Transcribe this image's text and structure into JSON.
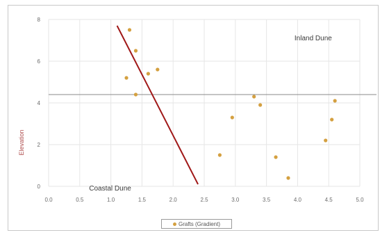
{
  "chart_data": {
    "type": "scatter",
    "title": "",
    "xlabel": "",
    "ylabel": "Elevation",
    "xlim": [
      0,
      5
    ],
    "ylim": [
      0,
      8
    ],
    "x_ticks": [
      "0.0",
      "0.5",
      "1.0",
      "1.5",
      "2.0",
      "2.5",
      "3.0",
      "3.5",
      "4.0",
      "4.5",
      "5.0"
    ],
    "y_ticks": [
      "0",
      "2",
      "4",
      "6",
      "8"
    ],
    "grid": true,
    "series": [
      {
        "name": "Grafts (Gradient)",
        "color": "#d4a040",
        "points": [
          {
            "x": 1.3,
            "y": 7.5
          },
          {
            "x": 1.4,
            "y": 6.5
          },
          {
            "x": 1.25,
            "y": 5.2
          },
          {
            "x": 1.4,
            "y": 4.4
          },
          {
            "x": 1.6,
            "y": 5.4
          },
          {
            "x": 1.75,
            "y": 5.6
          },
          {
            "x": 2.75,
            "y": 1.5
          },
          {
            "x": 2.95,
            "y": 3.3
          },
          {
            "x": 3.3,
            "y": 4.3
          },
          {
            "x": 3.4,
            "y": 3.9
          },
          {
            "x": 3.65,
            "y": 1.4
          },
          {
            "x": 3.85,
            "y": 0.4
          },
          {
            "x": 4.45,
            "y": 2.2
          },
          {
            "x": 4.55,
            "y": 3.2
          },
          {
            "x": 4.6,
            "y": 4.1
          }
        ]
      }
    ],
    "trend_line": {
      "color": "#a01818",
      "x": [
        1.1,
        2.4
      ],
      "y": [
        7.7,
        0.1
      ]
    },
    "reference_line": {
      "color": "#8a8a8a",
      "y": 4.4
    },
    "annotations": [
      {
        "text": "Inland Dune",
        "x": 3.95,
        "y": 7.0
      },
      {
        "text": "Coastal Dune",
        "x": 0.65,
        "y": -0.2
      }
    ],
    "legend": {
      "position": "bottom",
      "label": "Grafts (Gradient)"
    }
  }
}
